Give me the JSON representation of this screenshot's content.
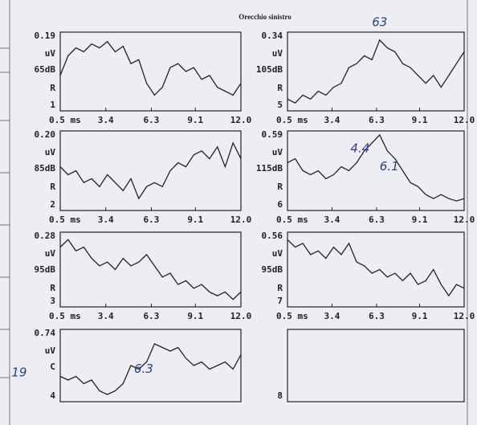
{
  "title": "Orecchio sinistro",
  "chart_data": [
    {
      "type": "line",
      "scale": "0.19",
      "unit": "uV",
      "level": "65dB",
      "label": "R",
      "record": "1",
      "xlim": [
        0.5,
        12
      ],
      "ylim": [
        0,
        1
      ],
      "xticks": [
        {
          "value": 0.5,
          "label": "0.5 ms"
        },
        3.4,
        6.3,
        9.1,
        {
          "value": 12,
          "label": "12.0"
        }
      ],
      "x": [
        0.5,
        1,
        1.5,
        2,
        2.5,
        3,
        3.5,
        4,
        4.5,
        5,
        5.5,
        6,
        6.5,
        7,
        7.5,
        8,
        8.5,
        9,
        9.5,
        10,
        10.5,
        11,
        11.5,
        12
      ],
      "values": [
        0.45,
        0.7,
        0.8,
        0.75,
        0.85,
        0.8,
        0.88,
        0.75,
        0.82,
        0.6,
        0.65,
        0.35,
        0.2,
        0.3,
        0.55,
        0.6,
        0.5,
        0.55,
        0.4,
        0.45,
        0.3,
        0.25,
        0.2,
        0.35
      ]
    },
    {
      "type": "line",
      "scale": "0.34",
      "unit": "uV",
      "level": "105dB",
      "label": "R",
      "record": "5",
      "xlim": [
        0.5,
        12
      ],
      "ylim": [
        0,
        1
      ],
      "xticks": [
        {
          "value": 0.5,
          "label": "0.5 ms"
        },
        3.4,
        6.3,
        9.1,
        {
          "value": 12,
          "label": "12.0"
        }
      ],
      "x": [
        0.5,
        1,
        1.5,
        2,
        2.5,
        3,
        3.5,
        4,
        4.5,
        5,
        5.5,
        6,
        6.5,
        7,
        7.5,
        8,
        8.5,
        9,
        9.5,
        10,
        10.5,
        11,
        11.5,
        12
      ],
      "values": [
        0.15,
        0.1,
        0.2,
        0.15,
        0.25,
        0.2,
        0.3,
        0.35,
        0.55,
        0.6,
        0.7,
        0.65,
        0.9,
        0.8,
        0.75,
        0.6,
        0.55,
        0.45,
        0.35,
        0.45,
        0.3,
        0.45,
        0.6,
        0.75
      ],
      "annotations": [
        {
          "text": "63",
          "x": 6.0,
          "y": 1.12
        }
      ]
    },
    {
      "type": "line",
      "scale": "0.20",
      "unit": "uV",
      "level": "85dB",
      "label": "R",
      "record": "2",
      "xlim": [
        0.5,
        12
      ],
      "ylim": [
        0,
        1
      ],
      "xticks": [
        {
          "value": 0.5,
          "label": "0.5 ms"
        },
        3.4,
        6.3,
        9.1,
        {
          "value": 12,
          "label": "12.0"
        }
      ],
      "x": [
        0.5,
        1,
        1.5,
        2,
        2.5,
        3,
        3.5,
        4,
        4.5,
        5,
        5.5,
        6,
        6.5,
        7,
        7.5,
        8,
        8.5,
        9,
        9.5,
        10,
        10.5,
        11,
        11.5,
        12
      ],
      "values": [
        0.55,
        0.45,
        0.5,
        0.35,
        0.4,
        0.3,
        0.45,
        0.35,
        0.25,
        0.4,
        0.15,
        0.3,
        0.35,
        0.3,
        0.5,
        0.6,
        0.55,
        0.7,
        0.75,
        0.65,
        0.8,
        0.55,
        0.85,
        0.65
      ]
    },
    {
      "type": "line",
      "scale": "0.59",
      "unit": "uV",
      "level": "115dB",
      "label": "R",
      "record": "6",
      "xlim": [
        0.5,
        12
      ],
      "ylim": [
        0,
        1
      ],
      "xticks": [
        {
          "value": 0.5,
          "label": "0.5 ms"
        },
        3.4,
        6.3,
        9.1,
        {
          "value": 12,
          "label": "12.0"
        }
      ],
      "x": [
        0.5,
        1,
        1.5,
        2,
        2.5,
        3,
        3.5,
        4,
        4.5,
        5,
        5.5,
        6,
        6.5,
        7,
        7.5,
        8,
        8.5,
        9,
        9.5,
        10,
        10.5,
        11,
        11.5,
        12
      ],
      "values": [
        0.6,
        0.65,
        0.5,
        0.45,
        0.5,
        0.4,
        0.45,
        0.55,
        0.5,
        0.6,
        0.75,
        0.85,
        0.95,
        0.75,
        0.65,
        0.5,
        0.35,
        0.3,
        0.2,
        0.15,
        0.2,
        0.15,
        0.12,
        0.15
      ],
      "annotations": [
        {
          "text": "4.4",
          "x": 4.6,
          "y": 0.78
        },
        {
          "text": "6.1",
          "x": 6.5,
          "y": 0.55
        }
      ]
    },
    {
      "type": "line",
      "scale": "0.28",
      "unit": "uV",
      "level": "95dB",
      "label": "R",
      "record": "3",
      "xlim": [
        0.5,
        12
      ],
      "ylim": [
        0,
        1
      ],
      "xticks": [
        {
          "value": 0.5,
          "label": "0.5 ms"
        },
        3.4,
        6.3,
        9.1,
        {
          "value": 12,
          "label": "12.0"
        }
      ],
      "x": [
        0.5,
        1,
        1.5,
        2,
        2.5,
        3,
        3.5,
        4,
        4.5,
        5,
        5.5,
        6,
        6.5,
        7,
        7.5,
        8,
        8.5,
        9,
        9.5,
        10,
        10.5,
        11,
        11.5,
        12
      ],
      "values": [
        0.8,
        0.9,
        0.75,
        0.8,
        0.65,
        0.55,
        0.6,
        0.5,
        0.65,
        0.55,
        0.6,
        0.7,
        0.55,
        0.4,
        0.45,
        0.3,
        0.35,
        0.25,
        0.3,
        0.2,
        0.15,
        0.2,
        0.1,
        0.2
      ]
    },
    {
      "type": "line",
      "scale": "0.56",
      "unit": "uV",
      "level": "95dB",
      "label": "R",
      "record": "7",
      "xlim": [
        0.5,
        12
      ],
      "ylim": [
        0,
        1
      ],
      "xticks": [
        {
          "value": 0.5,
          "label": "0.5 ms"
        },
        3.4,
        6.3,
        9.1,
        {
          "value": 12,
          "label": "12.0"
        }
      ],
      "x": [
        0.5,
        1,
        1.5,
        2,
        2.5,
        3,
        3.5,
        4,
        4.5,
        5,
        5.5,
        6,
        6.5,
        7,
        7.5,
        8,
        8.5,
        9,
        9.5,
        10,
        10.5,
        11,
        11.5,
        12
      ],
      "values": [
        0.9,
        0.8,
        0.85,
        0.7,
        0.75,
        0.65,
        0.8,
        0.7,
        0.85,
        0.6,
        0.55,
        0.45,
        0.5,
        0.4,
        0.45,
        0.35,
        0.45,
        0.3,
        0.35,
        0.5,
        0.3,
        0.15,
        0.3,
        0.25
      ]
    },
    {
      "type": "line",
      "scale": "0.74",
      "unit": "uV",
      "level": "C",
      "label": "",
      "record": "4",
      "xlim": [
        0.5,
        12
      ],
      "ylim": [
        0,
        1
      ],
      "x": [
        0.5,
        1,
        1.5,
        2,
        2.5,
        3,
        3.5,
        4,
        4.5,
        5,
        5.5,
        6,
        6.5,
        7,
        7.5,
        8,
        8.5,
        9,
        9.5,
        10,
        10.5,
        11,
        11.5,
        12
      ],
      "values": [
        0.35,
        0.3,
        0.35,
        0.25,
        0.3,
        0.15,
        0.1,
        0.15,
        0.25,
        0.5,
        0.45,
        0.55,
        0.8,
        0.75,
        0.7,
        0.75,
        0.6,
        0.5,
        0.55,
        0.45,
        0.5,
        0.55,
        0.45,
        0.65
      ],
      "annotations": [
        {
          "text": "19",
          "x": -2.6,
          "y": 0.4
        },
        {
          "text": "6.3",
          "x": 5.2,
          "y": 0.45
        }
      ]
    },
    {
      "type": "line",
      "record": "8",
      "xlim": [
        0.5,
        12
      ],
      "ylim": [
        0,
        1
      ],
      "x": [],
      "values": []
    }
  ]
}
